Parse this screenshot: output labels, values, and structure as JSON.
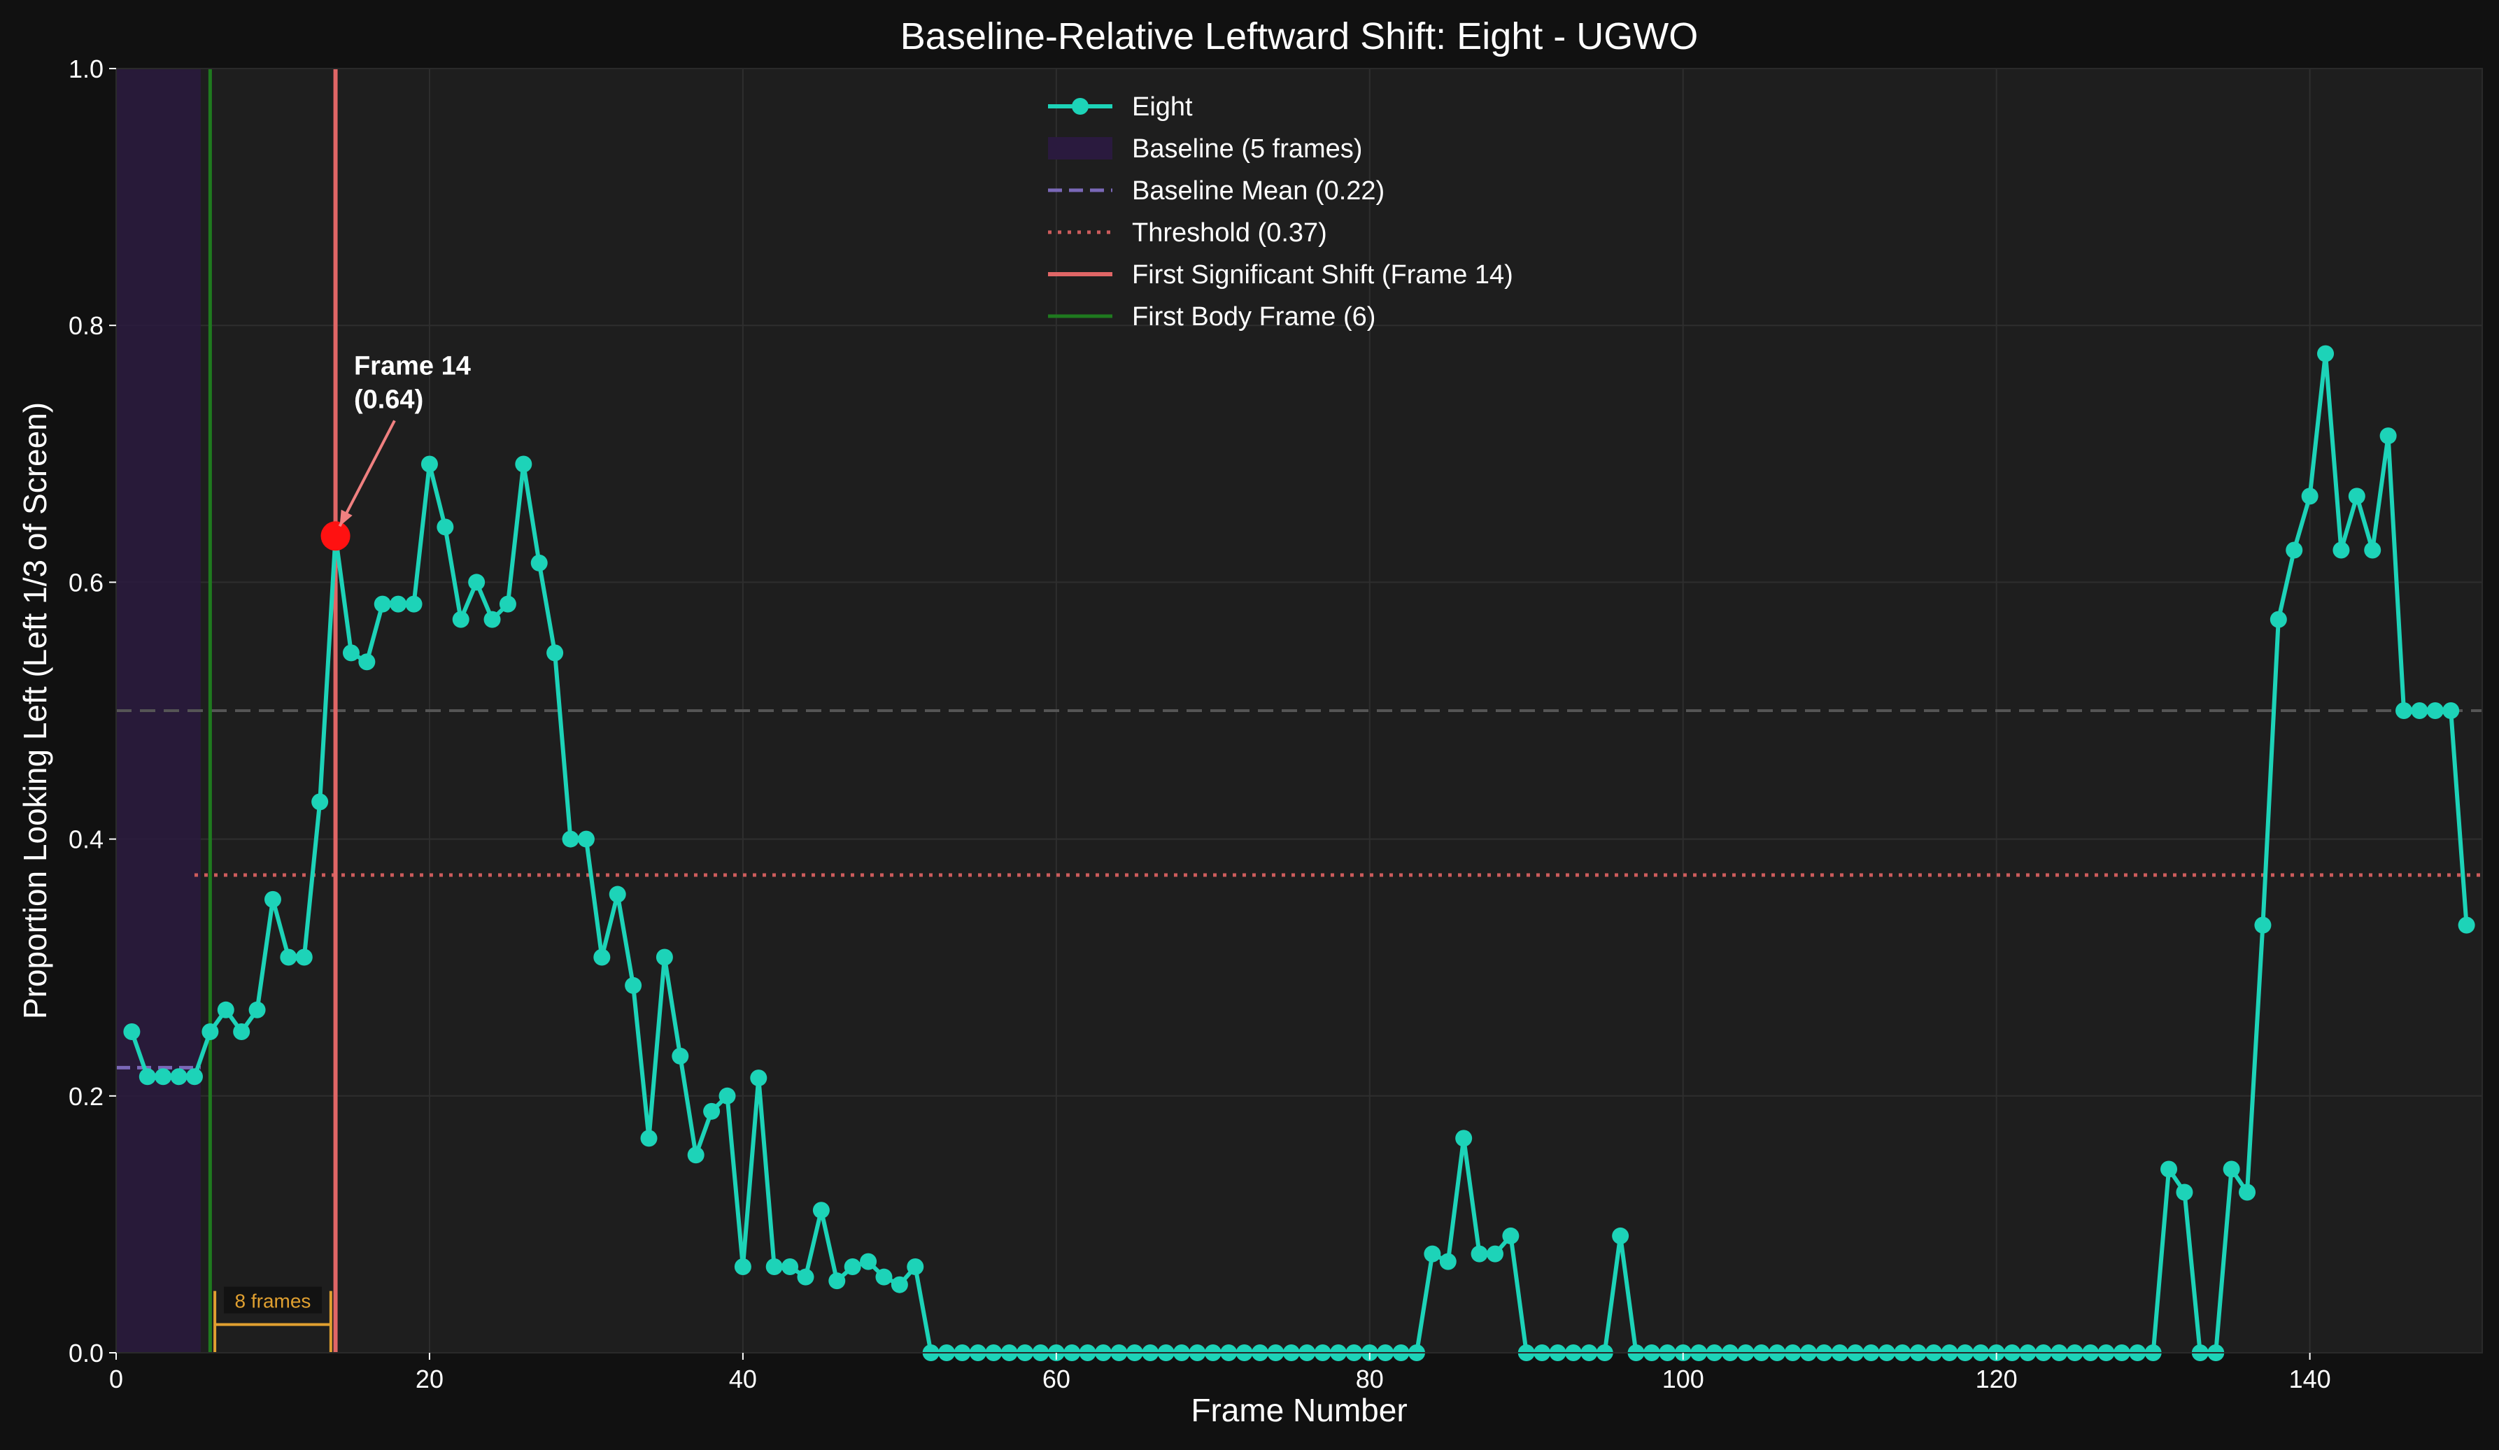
{
  "chart_data": {
    "type": "line",
    "title": "Baseline-Relative Leftward Shift: Eight - UGWO",
    "xlabel": "Frame Number",
    "ylabel": "Proportion Looking Left (Left 1/3 of Screen)",
    "xlim": [
      0,
      151
    ],
    "ylim": [
      0,
      1.0
    ],
    "xticks": [
      0,
      20,
      40,
      60,
      80,
      100,
      120,
      140
    ],
    "yticks": [
      0.0,
      0.2,
      0.4,
      0.6,
      0.8,
      1.0
    ],
    "grid": true,
    "legend_position": "top-center",
    "series": [
      {
        "name": "Eight",
        "color": "#1dd3b8",
        "x": [
          1,
          2,
          3,
          4,
          5,
          6,
          7,
          8,
          9,
          10,
          11,
          12,
          13,
          14,
          15,
          16,
          17,
          18,
          19,
          20,
          21,
          22,
          23,
          24,
          25,
          26,
          27,
          28,
          29,
          30,
          31,
          32,
          33,
          34,
          35,
          36,
          37,
          38,
          39,
          40,
          41,
          42,
          43,
          44,
          45,
          46,
          47,
          48,
          49,
          50,
          51,
          52,
          53,
          54,
          55,
          56,
          57,
          58,
          59,
          60,
          61,
          62,
          63,
          64,
          65,
          66,
          67,
          68,
          69,
          70,
          71,
          72,
          73,
          74,
          75,
          76,
          77,
          78,
          79,
          80,
          81,
          82,
          83,
          84,
          85,
          86,
          87,
          88,
          89,
          90,
          91,
          92,
          93,
          94,
          95,
          96,
          97,
          98,
          99,
          100,
          101,
          102,
          103,
          104,
          105,
          106,
          107,
          108,
          109,
          110,
          111,
          112,
          113,
          114,
          115,
          116,
          117,
          118,
          119,
          120,
          121,
          122,
          123,
          124,
          125,
          126,
          127,
          128,
          129,
          130,
          131,
          132,
          133,
          134,
          135,
          136,
          137,
          138,
          139,
          140,
          141,
          142,
          143,
          144,
          145,
          146,
          147,
          148,
          149,
          150
        ],
        "y": [
          0.25,
          0.215,
          0.215,
          0.215,
          0.215,
          0.25,
          0.267,
          0.25,
          0.267,
          0.353,
          0.308,
          0.308,
          0.429,
          0.636,
          0.545,
          0.538,
          0.583,
          0.583,
          0.583,
          0.692,
          0.643,
          0.571,
          0.6,
          0.571,
          0.583,
          0.692,
          0.615,
          0.545,
          0.4,
          0.4,
          0.308,
          0.357,
          0.286,
          0.167,
          0.308,
          0.231,
          0.154,
          0.188,
          0.2,
          0.067,
          0.214,
          0.067,
          0.067,
          0.059,
          0.111,
          0.056,
          0.067,
          0.071,
          0.059,
          0.053,
          0.067,
          0,
          0,
          0,
          0,
          0,
          0,
          0,
          0,
          0,
          0,
          0,
          0,
          0,
          0,
          0,
          0,
          0,
          0,
          0,
          0,
          0,
          0,
          0,
          0,
          0,
          0,
          0,
          0,
          0,
          0,
          0,
          0,
          0.077,
          0.071,
          0.167,
          0.077,
          0.077,
          0.091,
          0,
          0,
          0,
          0,
          0,
          0,
          0.091,
          0,
          0,
          0,
          0,
          0,
          0,
          0,
          0,
          0,
          0,
          0,
          0,
          0,
          0,
          0,
          0,
          0,
          0,
          0,
          0,
          0,
          0,
          0,
          0,
          0,
          0,
          0,
          0,
          0,
          0,
          0,
          0,
          0,
          0,
          0.143,
          0.125,
          0,
          0,
          0.143,
          0.125,
          0.333,
          0.571,
          0.625,
          0.667,
          0.778,
          0.625,
          0.667,
          0.625,
          0.714,
          0.5,
          0.5,
          0.5,
          0.5,
          0.333
        ]
      }
    ],
    "baseline": {
      "label": "Baseline (5 frames)",
      "x_range": [
        0,
        5.4
      ],
      "color": "#2a1a3e"
    },
    "baseline_mean": {
      "label": "Baseline Mean (0.22)",
      "value": 0.222,
      "x_range": [
        0,
        5.4
      ],
      "color": "#7a68b8"
    },
    "threshold": {
      "label": "Threshold (0.37)",
      "value": 0.372,
      "x_range": [
        5,
        151
      ],
      "color": "#cd5c5c"
    },
    "chance_line": {
      "value": 0.5,
      "color": "#555555"
    },
    "first_shift": {
      "label": "First Significant Shift (Frame 14)",
      "frame": 14,
      "value": 0.636,
      "color": "#e06666",
      "marker_color": "#ff1111"
    },
    "first_body_frame": {
      "label": "First Body Frame (6)",
      "frame": 6,
      "color": "#1f7a1f"
    },
    "annotation": {
      "line1": "Frame 14",
      "line2": "(0.64)",
      "text_x": 15,
      "text_y": 0.74,
      "color": "#f08080"
    },
    "bracket": {
      "label": "8 frames",
      "from": 6.3,
      "to": 13.7,
      "value": 0.022,
      "color": "#e0a030"
    }
  }
}
